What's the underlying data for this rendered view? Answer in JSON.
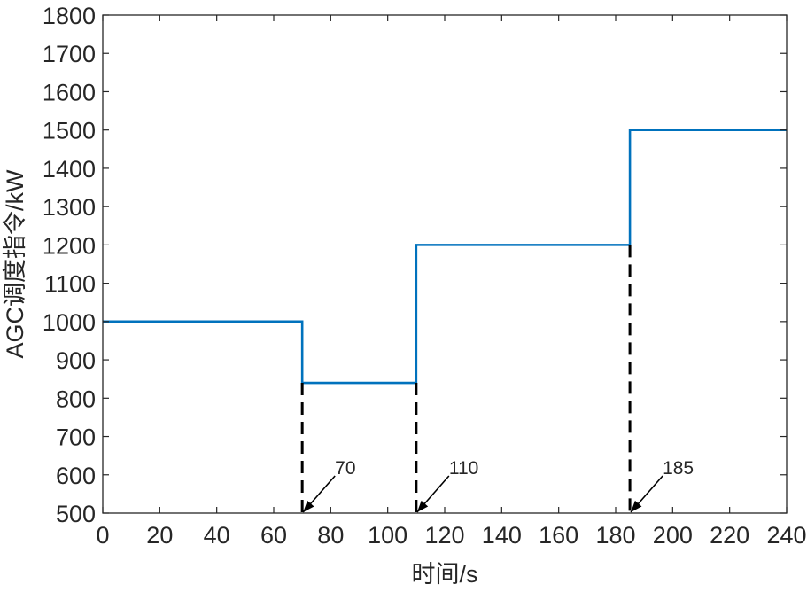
{
  "chart_data": {
    "type": "line",
    "title": "",
    "xlabel": "时间/s",
    "ylabel": "AGC调度指令/kW",
    "xlim": [
      0,
      240
    ],
    "ylim": [
      500,
      1800
    ],
    "xticks": [
      "0",
      "20",
      "40",
      "60",
      "80",
      "100",
      "120",
      "140",
      "160",
      "180",
      "200",
      "220",
      "240"
    ],
    "yticks": [
      "500",
      "600",
      "700",
      "800",
      "900",
      "1000",
      "1100",
      "1200",
      "1300",
      "1400",
      "1500",
      "1600",
      "1700",
      "1800"
    ],
    "grid": false,
    "series": [
      {
        "step": "post",
        "color": "#0072BD",
        "x": [
          0,
          70,
          70,
          110,
          110,
          185,
          185,
          240
        ],
        "y": [
          1000,
          1000,
          840,
          840,
          1200,
          1200,
          1500,
          1500
        ]
      }
    ],
    "annotations": [
      {
        "x": 70,
        "text": "70",
        "y_top": 840
      },
      {
        "x": 110,
        "text": "110",
        "y_top": 840
      },
      {
        "x": 185,
        "text": "185",
        "y_top": 1200
      }
    ]
  }
}
